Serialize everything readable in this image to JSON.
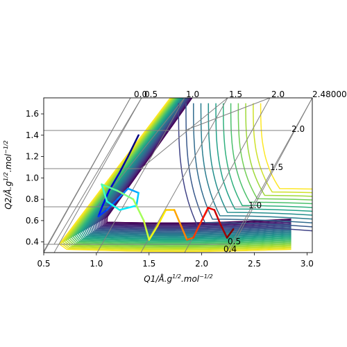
{
  "chart_data": {
    "type": "line",
    "subtype": "contour-with-trajectory",
    "xlabel": "Q1/Å.g^{1/2}.mol^{-1/2}",
    "ylabel": "Q2/Å.g^{1/2}.mol^{-1/2}",
    "xlim": [
      0.5,
      3.05
    ],
    "ylim": [
      0.3,
      1.75
    ],
    "x_ticks": [
      "0.5",
      "1.0",
      "1.5",
      "2.0",
      "2.5",
      "3.0"
    ],
    "y_ticks": [
      "0.4",
      "0.6",
      "0.8",
      "1.0",
      "1.2",
      "1.4",
      "1.6"
    ],
    "x_tick_values": [
      0.5,
      1.0,
      1.5,
      2.0,
      2.5,
      3.0
    ],
    "y_tick_values": [
      0.4,
      0.6,
      0.8,
      1.0,
      1.2,
      1.4,
      1.6
    ],
    "skew_axis_top_labels": [
      "0.0",
      "0.5",
      "1.0",
      "1.5",
      "2.0",
      "2.480000"
    ],
    "skew_axis_right_labels": [
      "0.4",
      "0.5",
      "1.0",
      "1.5",
      "2.0"
    ],
    "contour_colormap": "viridis",
    "trajectory_colormap": "jet",
    "grid": true
  }
}
